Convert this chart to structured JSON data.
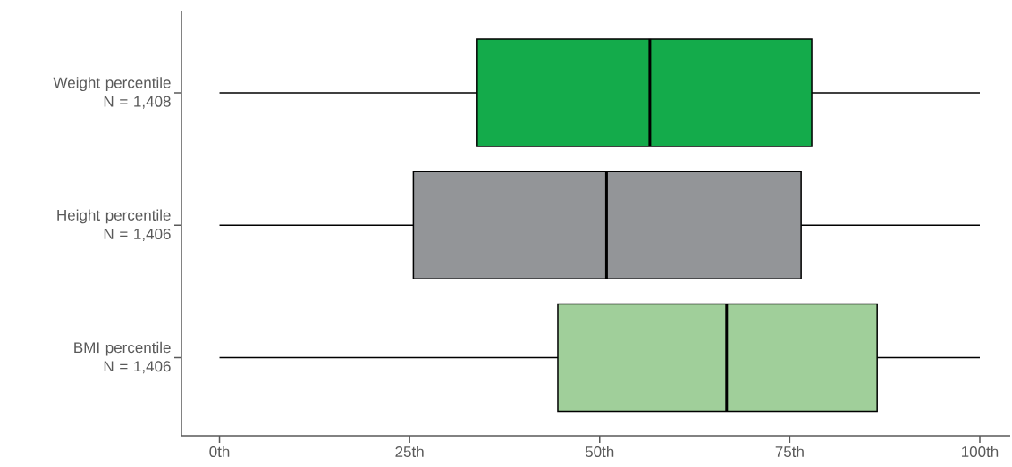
{
  "chart_data": {
    "type": "box",
    "orientation": "horizontal",
    "categories": [
      "Weight percentile N = 1,408",
      "Height percentile N = 1,406",
      "BMI percentile N = 1,406"
    ],
    "boxes": [
      {
        "low": 0,
        "q1": 33.9,
        "median": 56.6,
        "q3": 77.9,
        "high": 100
      },
      {
        "low": 0,
        "q1": 25.5,
        "median": 50.9,
        "q3": 76.5,
        "high": 100
      },
      {
        "low": 0,
        "q1": 44.5,
        "median": 66.7,
        "q3": 86.5,
        "high": 100
      }
    ],
    "colors": [
      "#14ab4b",
      "#939598",
      "#a0cf9a"
    ],
    "xlim": [
      -5,
      104
    ],
    "xticks": [
      {
        "value": 0,
        "label": "0th"
      },
      {
        "value": 25,
        "label": "25th"
      },
      {
        "value": 50,
        "label": "50th"
      },
      {
        "value": 75,
        "label": "75th"
      },
      {
        "value": 100,
        "label": "100th"
      }
    ]
  }
}
